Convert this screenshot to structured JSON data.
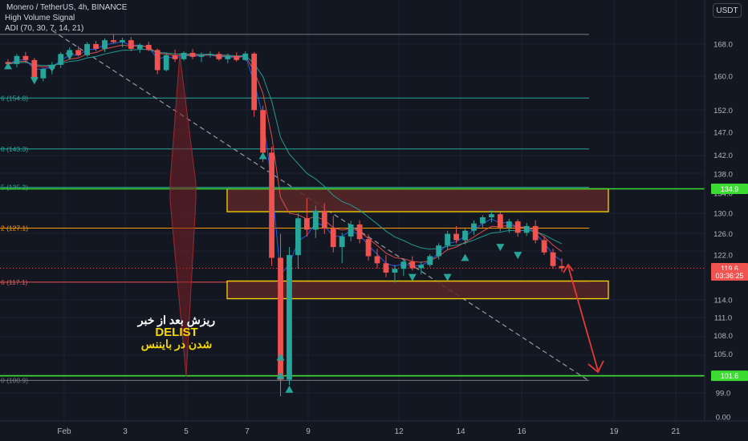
{
  "header": {
    "title": "Monero / TetherUS, 4h, BINANCE",
    "indicator_1": "High Volume Signal",
    "indicator_2": "ADI (70, 30, 7, 14, 21)"
  },
  "currency_button": "USDT",
  "annotation": {
    "line1": "ریزش بعد از خبر",
    "line2": "DELIST",
    "line3": "شدن در بایننس"
  },
  "colors": {
    "background": "#131722",
    "up_candle": "#26a69a",
    "down_candle": "#ef5350",
    "support_line": "#3cdc32",
    "zone_border": "#f5d800",
    "zone_fill": "#5a2727",
    "projection_arrow": "#e53935",
    "fib_teal": "#26a69a",
    "fib_orange": "#ff9800",
    "fib_red": "#ef5350",
    "signal_marker": "#26a69a",
    "ma_blue": "#2962ff",
    "ma_red": "#ef5350",
    "ma_green": "#26a69a"
  },
  "chart_data": {
    "type": "candlestick",
    "symbol": "XMRUSDT",
    "timeframe": "4h",
    "exchange": "BINANCE",
    "y_axis": {
      "scale": "log",
      "ticks": [
        "168.0",
        "160.0",
        "152.0",
        "147.0",
        "142.0",
        "138.0",
        "134.0",
        "130.0",
        "126.0",
        "122.0",
        "118.0",
        "114.0",
        "111.0",
        "108.0",
        "105.0",
        "102.0",
        "99.0",
        "0.00"
      ],
      "tick_values": [
        168,
        160,
        152,
        147,
        142,
        138,
        134,
        130,
        126,
        122,
        118,
        114,
        111,
        108,
        105,
        102,
        99
      ]
    },
    "x_axis": {
      "ticks": [
        "Feb",
        "3",
        "5",
        "7",
        "9",
        "12",
        "14",
        "16",
        "19",
        "21"
      ]
    },
    "price_labels": [
      {
        "value": "134.9",
        "color": "#3cdc32",
        "price": 134.9
      },
      {
        "value": "119.6",
        "color": "#ef5350",
        "price": 119.6
      },
      {
        "value": "03:36:25",
        "color": "#ef5350",
        "price": 118.3
      },
      {
        "value": "101.6",
        "color": "#3cdc32",
        "price": 101.6
      }
    ],
    "fib_levels": [
      {
        "label": "6 (154.8)",
        "price": 154.8,
        "color": "#26a69a"
      },
      {
        "label": "8 (143.3)",
        "price": 143.3,
        "color": "#26a69a"
      },
      {
        "label": "5 (135.2)",
        "price": 135.2,
        "color": "#26a69a"
      },
      {
        "label": "2 (127.1)",
        "price": 127.1,
        "color": "#ff9800"
      },
      {
        "label": "6 (117.1)",
        "price": 117.1,
        "color": "#ef5350"
      },
      {
        "label": "0 (100.9)",
        "price": 100.9,
        "color": "#787b86"
      }
    ],
    "top_line_price": 170.5,
    "support_lines": [
      134.9,
      101.6
    ],
    "zones": [
      {
        "name": "resistance",
        "top": 134.9,
        "bottom": 130.3
      },
      {
        "name": "support",
        "top": 117.3,
        "bottom": 114.2
      }
    ],
    "current_price": 119.6,
    "candles": [
      [
        163.5,
        164.2,
        161.8,
        163.0
      ],
      [
        163.0,
        165.5,
        162.2,
        165.0
      ],
      [
        165.0,
        166.0,
        163.5,
        164.0
      ],
      [
        164.0,
        164.5,
        158.5,
        159.5
      ],
      [
        159.5,
        162.0,
        158.8,
        161.8
      ],
      [
        161.8,
        163.5,
        160.5,
        162.8
      ],
      [
        162.8,
        166.0,
        162.0,
        165.5
      ],
      [
        165.5,
        167.2,
        164.5,
        166.5
      ],
      [
        166.5,
        167.5,
        164.8,
        165.2
      ],
      [
        165.2,
        168.5,
        164.8,
        168.0
      ],
      [
        168.0,
        168.8,
        166.2,
        166.8
      ],
      [
        166.8,
        169.5,
        166.0,
        169.0
      ],
      [
        169.0,
        170.5,
        168.2,
        168.5
      ],
      [
        168.5,
        169.6,
        167.2,
        169.0
      ],
      [
        169.0,
        169.8,
        166.2,
        166.8
      ],
      [
        166.8,
        168.2,
        165.8,
        167.8
      ],
      [
        167.8,
        168.6,
        166.2,
        166.5
      ],
      [
        166.5,
        166.9,
        160.5,
        161.5
      ],
      [
        161.5,
        165.8,
        161.2,
        165.2
      ],
      [
        165.2,
        166.6,
        163.5,
        164.2
      ],
      [
        164.2,
        166.2,
        163.8,
        165.8
      ],
      [
        165.8,
        166.8,
        164.2,
        164.8
      ],
      [
        164.8,
        165.9,
        163.5,
        165.2
      ],
      [
        165.2,
        166.2,
        164.6,
        165.5
      ],
      [
        165.5,
        166.1,
        163.8,
        164.2
      ],
      [
        164.2,
        165.6,
        163.2,
        165.0
      ],
      [
        165.0,
        165.9,
        163.6,
        164.0
      ],
      [
        164.0,
        166.2,
        163.8,
        165.6
      ],
      [
        165.6,
        166.0,
        150.5,
        152.0
      ],
      [
        152.0,
        153.0,
        140.5,
        142.5
      ],
      [
        142.5,
        143.8,
        120.0,
        121.5
      ],
      [
        121.5,
        126.0,
        98.5,
        101.0
      ],
      [
        101.0,
        123.5,
        100.2,
        122.0
      ],
      [
        122.0,
        130.0,
        119.5,
        129.0
      ],
      [
        129.0,
        133.0,
        125.5,
        126.8
      ],
      [
        126.8,
        131.5,
        125.2,
        130.5
      ],
      [
        130.5,
        132.0,
        126.0,
        127.0
      ],
      [
        127.0,
        129.5,
        122.5,
        123.5
      ],
      [
        123.5,
        126.2,
        120.5,
        125.5
      ],
      [
        125.5,
        128.5,
        124.6,
        127.8
      ],
      [
        127.8,
        128.6,
        124.2,
        125.0
      ],
      [
        125.0,
        125.9,
        121.0,
        121.8
      ],
      [
        121.8,
        123.2,
        119.6,
        120.5
      ],
      [
        120.5,
        122.0,
        118.0,
        118.8
      ],
      [
        118.8,
        120.2,
        117.0,
        119.5
      ],
      [
        119.5,
        121.3,
        118.2,
        120.8
      ],
      [
        120.8,
        121.8,
        119.2,
        119.6
      ],
      [
        119.6,
        120.9,
        118.5,
        120.2
      ],
      [
        120.2,
        122.2,
        119.8,
        121.8
      ],
      [
        121.8,
        124.2,
        121.2,
        123.8
      ],
      [
        123.8,
        126.6,
        123.0,
        126.0
      ],
      [
        126.0,
        127.5,
        124.2,
        124.8
      ],
      [
        124.8,
        127.0,
        124.0,
        126.6
      ],
      [
        126.6,
        128.6,
        125.8,
        128.0
      ],
      [
        128.0,
        129.6,
        127.2,
        129.2
      ],
      [
        129.2,
        130.6,
        128.2,
        129.8
      ],
      [
        129.8,
        130.2,
        126.5,
        127.2
      ],
      [
        127.2,
        128.9,
        126.2,
        128.4
      ],
      [
        128.4,
        128.8,
        125.5,
        126.2
      ],
      [
        126.2,
        128.1,
        125.6,
        127.5
      ],
      [
        127.5,
        128.6,
        124.2,
        124.8
      ],
      [
        124.8,
        125.6,
        122.0,
        122.5
      ],
      [
        122.5,
        123.2,
        119.5,
        120.0
      ],
      [
        120.0,
        121.4,
        119.0,
        119.6
      ]
    ],
    "signal_markers": [
      {
        "i": 0,
        "dir": "up",
        "price": 162.5
      },
      {
        "i": 3,
        "dir": "down",
        "price": 159.0
      },
      {
        "i": 5,
        "dir": "down",
        "price": 162.0
      },
      {
        "i": 7,
        "dir": "down",
        "price": 165.0
      },
      {
        "i": 29,
        "dir": "up",
        "price": 141.8
      },
      {
        "i": 31,
        "dir": "up",
        "price": 104.5
      },
      {
        "i": 31,
        "dir": "up",
        "price": 101.6
      },
      {
        "i": 32,
        "dir": "up",
        "price": 99.5
      },
      {
        "i": 46,
        "dir": "down",
        "price": 118.0
      },
      {
        "i": 50,
        "dir": "down",
        "price": 118.0
      },
      {
        "i": 52,
        "dir": "up",
        "price": 121.5
      },
      {
        "i": 56,
        "dir": "down",
        "price": 123.5
      },
      {
        "i": 58,
        "dir": "down",
        "price": 122.0
      }
    ]
  }
}
